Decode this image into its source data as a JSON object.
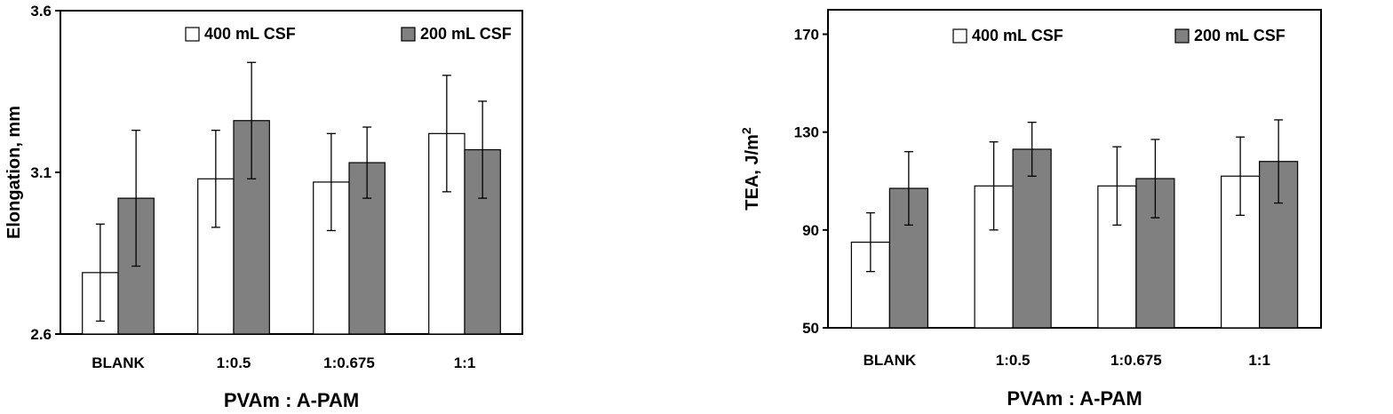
{
  "chart_data": [
    {
      "type": "bar",
      "xlabel": "PVAm : A-PAM",
      "ylabel": "Elongation, mm",
      "ylim": [
        2.6,
        3.6
      ],
      "yticks": [
        "2.6",
        "3.1",
        "3.6"
      ],
      "categories": [
        "BLANK",
        "1:0.5",
        "1:0.675",
        "1:1"
      ],
      "legend_position": "top",
      "series": [
        {
          "name": "400 mL CSF",
          "color": "#ffffff",
          "values": [
            2.79,
            3.08,
            3.07,
            3.22
          ],
          "errors": [
            0.15,
            0.15,
            0.15,
            0.18
          ]
        },
        {
          "name": "200 mL CSF",
          "color": "#808080",
          "values": [
            3.02,
            3.26,
            3.13,
            3.17
          ],
          "errors": [
            0.21,
            0.18,
            0.11,
            0.15
          ]
        }
      ]
    },
    {
      "type": "bar",
      "xlabel": "PVAm : A-PAM",
      "ylabel": "TEA,  J/m",
      "ylabel_sup": "2",
      "ylim": [
        50,
        180
      ],
      "yticks": [
        "50",
        "90",
        "130",
        "170"
      ],
      "categories": [
        "BLANK",
        "1:0.5",
        "1:0.675",
        "1:1"
      ],
      "legend_position": "top",
      "series": [
        {
          "name": "400 mL CSF",
          "color": "#ffffff",
          "values": [
            85,
            108,
            108,
            112
          ],
          "errors": [
            12,
            18,
            16,
            16
          ]
        },
        {
          "name": "200 mL CSF",
          "color": "#808080",
          "values": [
            107,
            123,
            111,
            118
          ],
          "errors": [
            15,
            11,
            16,
            17
          ]
        }
      ]
    }
  ]
}
